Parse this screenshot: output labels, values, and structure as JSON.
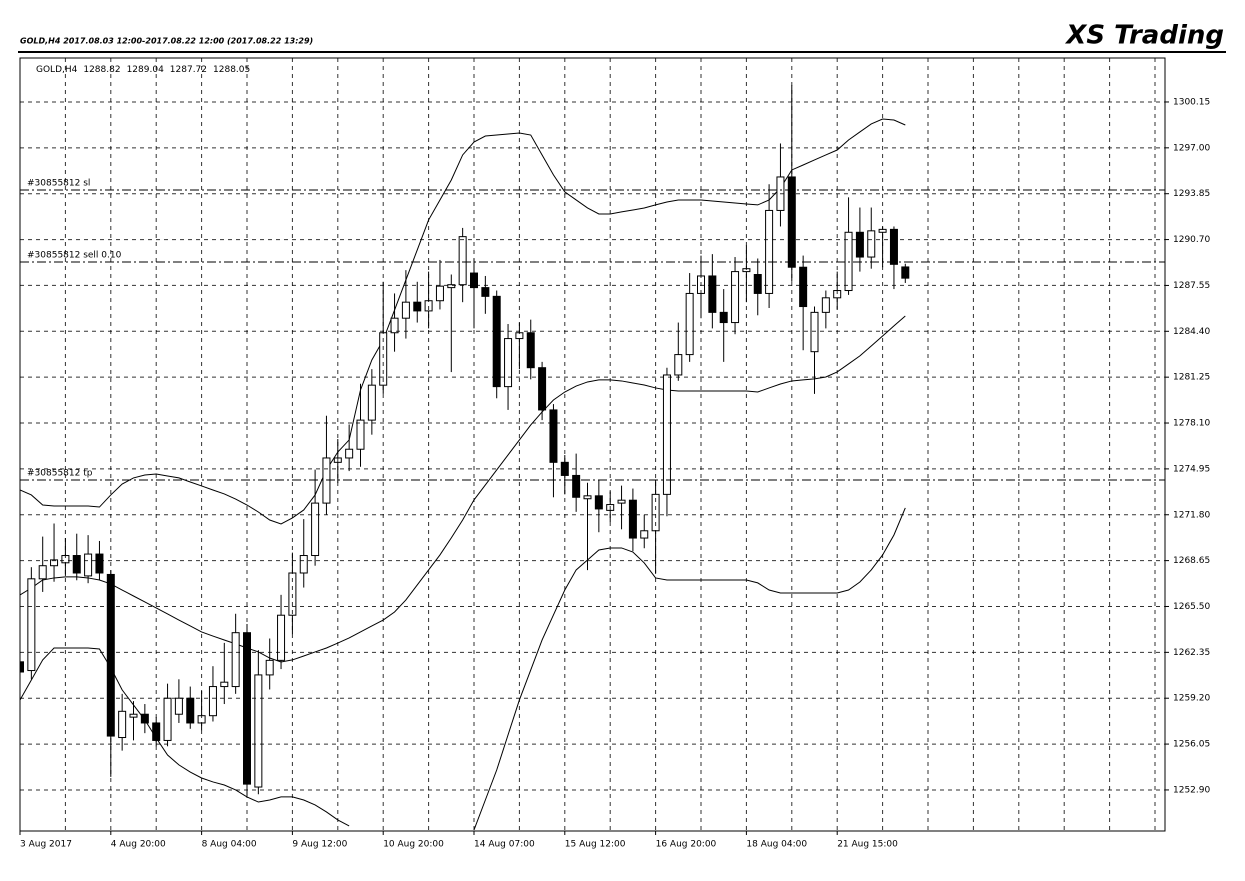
{
  "chart_data": {
    "type": "candlestick",
    "title": "XS Trading",
    "subtitle": "GOLD,H4  2017.08.03 12:00-2017.08.22 12:00  (2017.08.22 13:29)",
    "symbol": "GOLD,H4",
    "categories": [
      "3 Aug 2017",
      null,
      null,
      null,
      null,
      null,
      null,
      null,
      "4 Aug 20:00",
      null,
      null,
      null,
      null,
      null,
      null,
      null,
      "8 Aug 04:00",
      null,
      null,
      null,
      null,
      null,
      null,
      null,
      "9 Aug 12:00",
      null,
      null,
      null,
      null,
      null,
      null,
      null,
      "10 Aug 20:00",
      null,
      null,
      null,
      null,
      null,
      null,
      null,
      "14 Aug 07:00",
      null,
      null,
      null,
      null,
      null,
      null,
      null,
      "15 Aug 12:00",
      null,
      null,
      null,
      null,
      null,
      null,
      null,
      "16 Aug 20:00",
      null,
      null,
      null,
      null,
      null,
      null,
      null,
      "18 Aug 04:00",
      null,
      null,
      null,
      null,
      null,
      null,
      null,
      "21 Aug 15:00",
      null,
      null,
      null,
      null,
      null,
      null
    ],
    "open": [
      1261.7,
      1261.1,
      1267.4,
      1268.3,
      1268.5,
      1269.0,
      1267.6,
      1269.1,
      1267.7,
      1256.5,
      1257.9,
      1258.1,
      1257.5,
      1256.3,
      1258.1,
      1259.2,
      1257.5,
      1258.0,
      1260.0,
      1260.0,
      1263.7,
      1253.1,
      1260.8,
      1261.8,
      1264.9,
      1267.8,
      1269.0,
      1272.6,
      1275.4,
      1275.7,
      1276.3,
      1278.3,
      1280.7,
      1284.3,
      1285.3,
      1286.4,
      1285.8,
      1286.5,
      1287.4,
      1287.6,
      1288.4,
      1287.4,
      1286.8,
      1280.6,
      1283.9,
      1284.3,
      1281.9,
      1279.0,
      1275.4,
      1274.5,
      1272.9,
      1273.1,
      1272.1,
      1272.6,
      1272.8,
      1270.2,
      1270.7,
      1273.2,
      1281.4,
      1282.8,
      1287.0,
      1288.2,
      1285.7,
      1285.0,
      1288.5,
      1288.3,
      1287.0,
      1292.7,
      1295.0,
      1288.8,
      1283.0,
      1285.7,
      1286.7,
      1287.2,
      1291.2,
      1289.5,
      1291.2,
      1291.4,
      1288.82
    ],
    "high": [
      1262.3,
      1268.2,
      1270.3,
      1271.2,
      1270.2,
      1270.5,
      1270.4,
      1270.0,
      1268.0,
      1259.5,
      1259.0,
      1258.8,
      1257.9,
      1260.2,
      1260.5,
      1260.0,
      1259.7,
      1261.4,
      1263.0,
      1265.0,
      1264.3,
      1262.5,
      1263.3,
      1266.3,
      1269.2,
      1271.5,
      1274.9,
      1278.6,
      1277.0,
      1278.0,
      1280.8,
      1281.8,
      1287.8,
      1287.0,
      1288.6,
      1287.8,
      1288.5,
      1289.3,
      1288.3,
      1291.5,
      1289.4,
      1288.2,
      1287.2,
      1284.9,
      1285.0,
      1285.2,
      1282.3,
      1279.4,
      1275.9,
      1276.0,
      1274.0,
      1274.2,
      1273.4,
      1273.8,
      1273.6,
      1271.8,
      1274.2,
      1281.9,
      1285.0,
      1288.4,
      1289.6,
      1289.7,
      1287.3,
      1289.5,
      1290.3,
      1289.4,
      1294.5,
      1297.3,
      1301.3,
      1289.6,
      1286.1,
      1287.2,
      1288.5,
      1293.6,
      1292.9,
      1292.9,
      1291.6,
      1291.6,
      1289.04
    ],
    "low": [
      1259.2,
      1260.5,
      1266.5,
      1267.2,
      1267.6,
      1267.3,
      1267.1,
      1267.3,
      1253.8,
      1255.6,
      1256.3,
      1256.8,
      1255.9,
      1255.9,
      1257.5,
      1257.1,
      1257.0,
      1257.6,
      1258.8,
      1259.5,
      1252.5,
      1252.6,
      1259.8,
      1261.2,
      1263.6,
      1266.8,
      1268.3,
      1271.8,
      1274.0,
      1274.8,
      1275.1,
      1277.3,
      1280.1,
      1283.0,
      1283.9,
      1285.0,
      1284.6,
      1285.9,
      1281.6,
      1286.4,
      1284.6,
      1285.6,
      1279.8,
      1279.0,
      1281.8,
      1281.1,
      1278.3,
      1273.0,
      1273.2,
      1272.0,
      1268.0,
      1270.6,
      1271.3,
      1270.8,
      1269.3,
      1269.5,
      1267.8,
      1271.7,
      1281.0,
      1282.3,
      1285.3,
      1284.6,
      1282.3,
      1284.2,
      1286.4,
      1285.5,
      1286.0,
      1291.6,
      1287.8,
      1283.1,
      1280.1,
      1284.6,
      1285.9,
      1286.9,
      1288.5,
      1288.7,
      1288.8,
      1287.3,
      1287.72
    ],
    "close": [
      1261.0,
      1267.4,
      1268.3,
      1268.7,
      1269.0,
      1267.8,
      1269.1,
      1267.8,
      1256.6,
      1258.3,
      1258.1,
      1257.5,
      1256.3,
      1259.2,
      1259.2,
      1257.5,
      1258.0,
      1260.0,
      1260.3,
      1263.7,
      1253.3,
      1260.8,
      1261.8,
      1264.9,
      1267.8,
      1269.0,
      1272.6,
      1275.7,
      1275.7,
      1276.3,
      1278.3,
      1280.7,
      1284.3,
      1285.3,
      1286.4,
      1285.8,
      1286.5,
      1287.5,
      1287.6,
      1290.9,
      1287.4,
      1286.8,
      1280.6,
      1283.9,
      1284.3,
      1281.9,
      1279.0,
      1275.4,
      1274.5,
      1273.0,
      1273.1,
      1272.2,
      1272.5,
      1272.8,
      1270.2,
      1270.7,
      1273.2,
      1281.4,
      1282.8,
      1287.0,
      1288.2,
      1285.7,
      1285.0,
      1288.5,
      1288.7,
      1287.0,
      1292.7,
      1295.0,
      1288.8,
      1286.1,
      1285.7,
      1286.7,
      1287.2,
      1291.2,
      1289.5,
      1291.3,
      1291.4,
      1289.0,
      1288.05
    ],
    "bollinger": {
      "upper": [
        1273.5,
        1273.16,
        1272.47,
        1272.4,
        1272.4,
        1272.4,
        1272.4,
        1272.33,
        1273.16,
        1273.91,
        1274.33,
        1274.53,
        1274.6,
        1274.46,
        1274.33,
        1274.05,
        1273.78,
        1273.5,
        1273.23,
        1272.88,
        1272.47,
        1271.99,
        1271.44,
        1271.17,
        1271.58,
        1272.13,
        1273.16,
        1274.88,
        1276.11,
        1276.94,
        1280.37,
        1282.43,
        1283.8,
        1285.86,
        1287.93,
        1289.99,
        1292.05,
        1293.42,
        1294.79,
        1296.51,
        1297.4,
        1297.81,
        1297.88,
        1297.95,
        1298.02,
        1297.88,
        1296.51,
        1295.14,
        1293.97,
        1293.42,
        1292.87,
        1292.46,
        1292.46,
        1292.6,
        1292.73,
        1292.87,
        1293.08,
        1293.28,
        1293.42,
        1293.42,
        1293.42,
        1293.35,
        1293.28,
        1293.21,
        1293.14,
        1293.08,
        1293.42,
        1294.24,
        1295.48,
        1295.82,
        1296.17,
        1296.51,
        1296.85,
        1297.54,
        1298.09,
        1298.64,
        1298.98,
        1298.91,
        1298.57
      ],
      "middle": [
        1266.29,
        1266.77,
        1267.32,
        1267.46,
        1267.53,
        1267.53,
        1267.46,
        1267.32,
        1267.05,
        1266.63,
        1266.22,
        1265.81,
        1265.4,
        1264.99,
        1264.57,
        1264.16,
        1263.75,
        1263.47,
        1263.2,
        1262.93,
        1262.65,
        1262.38,
        1261.96,
        1261.69,
        1261.83,
        1262.1,
        1262.38,
        1262.65,
        1262.99,
        1263.34,
        1263.75,
        1264.16,
        1264.57,
        1265.12,
        1265.95,
        1266.98,
        1268.01,
        1269.04,
        1270.21,
        1271.44,
        1272.82,
        1273.85,
        1274.88,
        1275.91,
        1276.94,
        1277.97,
        1278.86,
        1279.68,
        1280.23,
        1280.64,
        1280.92,
        1281.06,
        1281.06,
        1280.99,
        1280.85,
        1280.71,
        1280.51,
        1280.37,
        1280.3,
        1280.3,
        1280.3,
        1280.3,
        1280.3,
        1280.3,
        1280.3,
        1280.23,
        1280.51,
        1280.78,
        1280.99,
        1281.06,
        1281.13,
        1281.26,
        1281.61,
        1282.16,
        1282.71,
        1283.39,
        1284.08,
        1284.77,
        1285.45
      ],
      "lower": [
        1259.08,
        1260.45,
        1261.83,
        1262.65,
        1262.65,
        1262.65,
        1262.65,
        1262.58,
        1261.28,
        1259.77,
        1258.74,
        1257.71,
        1256.47,
        1255.3,
        1254.62,
        1254.13,
        1253.72,
        1253.45,
        1253.24,
        1252.9,
        1252.42,
        1252.07,
        1252.21,
        1252.42,
        1252.42,
        1252.21,
        1251.87,
        1251.39,
        1250.84,
        1250.43,
        null,
        null,
        null,
        null,
        null,
        null,
        null,
        null,
        null,
        null,
        1250.15,
        1252.21,
        1254.27,
        1256.68,
        1259.08,
        1261.14,
        1263.2,
        1264.92,
        1266.63,
        1268.01,
        1268.69,
        1269.38,
        1269.52,
        1269.52,
        1269.24,
        1268.49,
        1267.46,
        1267.32,
        1267.32,
        1267.32,
        1267.32,
        1267.32,
        1267.32,
        1267.32,
        1267.32,
        1267.12,
        1266.63,
        1266.43,
        1266.43,
        1266.43,
        1266.43,
        1266.43,
        1266.43,
        1266.63,
        1267.18,
        1268.01,
        1269.04,
        1270.41,
        1272.27
      ]
    },
    "order_lines": [
      {
        "label": "#30855812 sl",
        "value": 1294.1
      },
      {
        "label": "#30855812 sell 0.10",
        "value": 1289.16
      },
      {
        "label": "#30855812 tp",
        "value": 1274.19
      }
    ],
    "ylim": [
      1250.08,
      1303.17
    ],
    "yticks": [
      {
        "value": 1252.9,
        "label": "1252.90"
      },
      1256.05,
      {
        "value": 1259.2,
        "label": "1259.20"
      },
      1262.35,
      {
        "value": 1265.5,
        "label": "1265.50"
      },
      1268.65,
      {
        "value": 1271.8,
        "label": "1271.80"
      },
      1274.95,
      {
        "value": 1278.1,
        "label": "1278.10"
      },
      1281.25,
      {
        "value": 1284.4,
        "label": "1284.40"
      },
      1287.55,
      {
        "value": 1290.7,
        "label": "1290.70"
      },
      1293.85,
      {
        "value": 1297,
        "label": "1297.00"
      },
      1300.15
    ],
    "grid": true,
    "color": "#000000",
    "up_color": "#ffffff",
    "down_color": "#000000"
  }
}
